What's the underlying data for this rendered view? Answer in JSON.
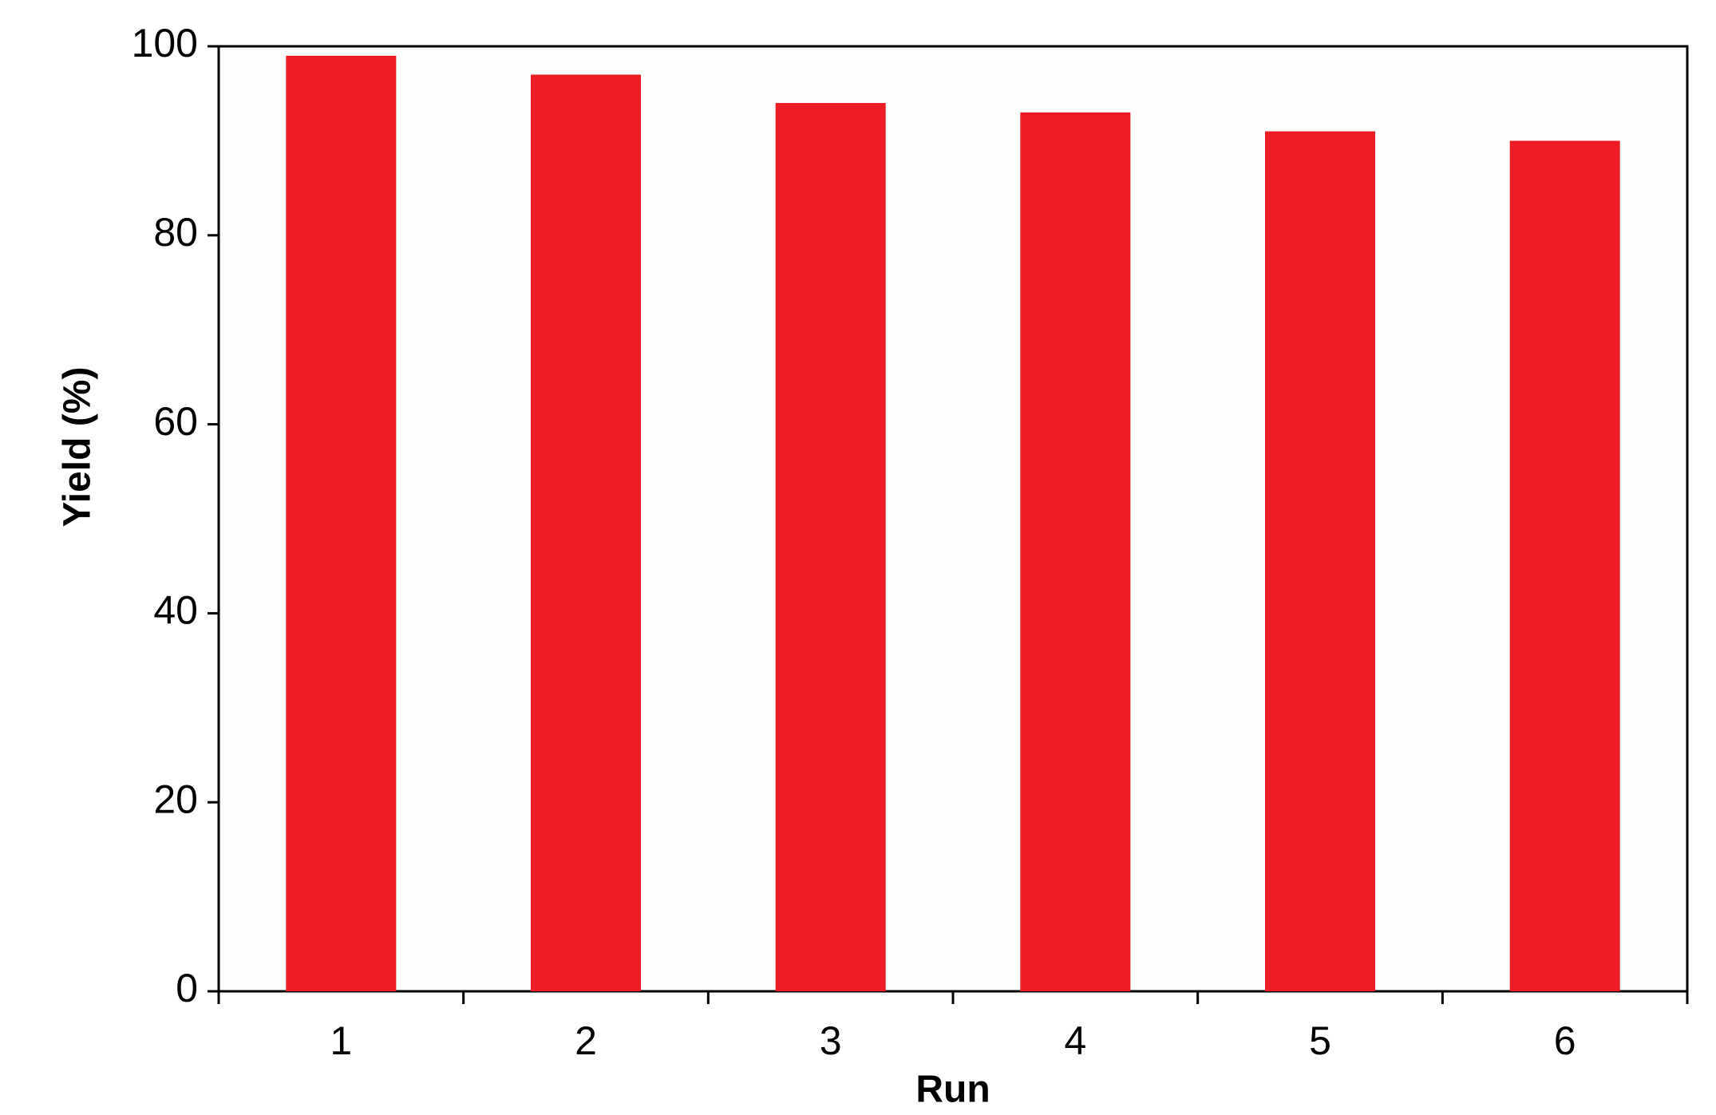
{
  "chart_data": {
    "type": "bar",
    "x_label": "Run",
    "y_label": "Yield (%)",
    "categories": [
      "1",
      "2",
      "3",
      "4",
      "5",
      "6"
    ],
    "values": [
      99,
      97,
      94,
      93,
      91,
      90
    ],
    "color": "#ed1c24",
    "ylim": [
      0,
      100
    ],
    "yticks": [
      0,
      20,
      40,
      60,
      80,
      100
    ],
    "grid": false
  }
}
